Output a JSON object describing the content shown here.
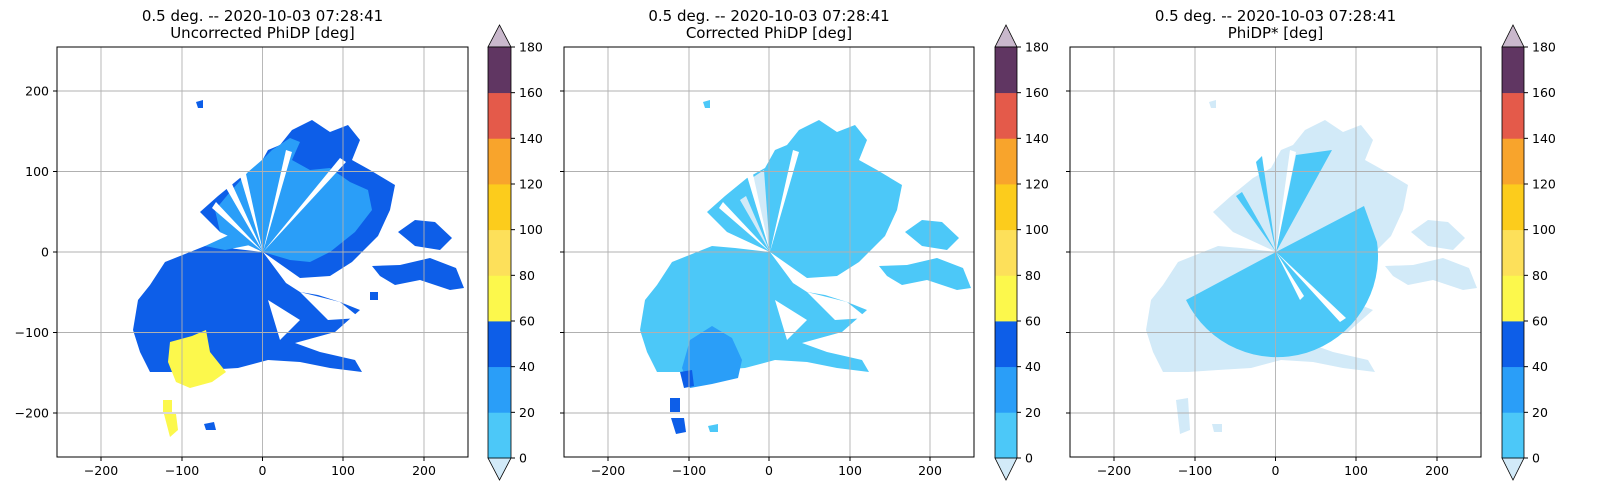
{
  "figure": {
    "background": "#ffffff"
  },
  "chart_data": [
    {
      "type": "heatmap",
      "title": "0.5 deg. -- 2020-10-03 07:28:41",
      "subtitle": "Uncorrected PhiDP [deg]",
      "xlim": [
        -256,
        256
      ],
      "ylim": [
        -256,
        256
      ],
      "xticks": [
        "−200",
        "−100",
        "0",
        "100",
        "200"
      ],
      "yticks": [
        "200",
        "100",
        "0",
        "−100",
        "−200"
      ],
      "grid": true,
      "colorbar": {
        "levels": [
          0,
          20,
          40,
          60,
          80,
          100,
          120,
          140,
          160,
          180
        ],
        "tick_labels": [
          "0",
          "20",
          "40",
          "60",
          "80",
          "100",
          "120",
          "140",
          "160",
          "180"
        ],
        "colors": [
          "#4cc8f8",
          "#2a9ef8",
          "#0d5ee8",
          "#fcf84c",
          "#fde05a",
          "#fccc1c",
          "#f8a42c",
          "#e45a4a",
          "#603662"
        ],
        "under": "#d2eaf8",
        "over": "#c9b8cc"
      },
      "regions": [
        {
          "level_range": [
            40,
            60
          ],
          "color": "#0d5ee8",
          "note": "dominant echo area"
        },
        {
          "level_range": [
            20,
            40
          ],
          "color": "#2a9ef8",
          "note": "northern sector"
        },
        {
          "level_range": [
            60,
            80
          ],
          "color": "#fcf84c",
          "note": "southwest patch"
        }
      ]
    },
    {
      "type": "heatmap",
      "title": "0.5 deg. -- 2020-10-03 07:28:41",
      "subtitle": "Corrected PhiDP [deg]",
      "xlim": [
        -256,
        256
      ],
      "ylim": [
        -256,
        256
      ],
      "xticks": [
        "−200",
        "−100",
        "0",
        "100",
        "200"
      ],
      "yticks": [],
      "grid": true,
      "colorbar": {
        "levels": [
          0,
          20,
          40,
          60,
          80,
          100,
          120,
          140,
          160,
          180
        ],
        "tick_labels": [
          "0",
          "20",
          "40",
          "60",
          "80",
          "100",
          "120",
          "140",
          "160",
          "180"
        ],
        "colors": [
          "#4cc8f8",
          "#2a9ef8",
          "#0d5ee8",
          "#fcf84c",
          "#fde05a",
          "#fccc1c",
          "#f8a42c",
          "#e45a4a",
          "#603662"
        ],
        "under": "#d2eaf8",
        "over": "#c9b8cc"
      },
      "regions": [
        {
          "level_range": [
            0,
            20
          ],
          "color": "#4cc8f8",
          "note": "dominant echo area"
        },
        {
          "level_range": [
            20,
            40
          ],
          "color": "#2a9ef8",
          "note": "southwest patch"
        },
        {
          "level_range": [
            40,
            60
          ],
          "color": "#0d5ee8",
          "note": "small southwest specks"
        }
      ]
    },
    {
      "type": "heatmap",
      "title": "0.5 deg. -- 2020-10-03 07:28:41",
      "subtitle": "PhiDP* [deg]",
      "xlim": [
        -256,
        256
      ],
      "ylim": [
        -256,
        256
      ],
      "xticks": [
        "−200",
        "−100",
        "0",
        "100",
        "200"
      ],
      "yticks": [],
      "grid": true,
      "colorbar": {
        "levels": [
          0,
          20,
          40,
          60,
          80,
          100,
          120,
          140,
          160,
          180
        ],
        "tick_labels": [
          "0",
          "20",
          "40",
          "60",
          "80",
          "100",
          "120",
          "140",
          "160",
          "180"
        ],
        "colors": [
          "#4cc8f8",
          "#2a9ef8",
          "#0d5ee8",
          "#fcf84c",
          "#fde05a",
          "#fccc1c",
          "#f8a42c",
          "#e45a4a",
          "#603662"
        ],
        "under": "#d2eaf8",
        "over": "#c9b8cc"
      },
      "regions": [
        {
          "level_range": [
            "below",
            0
          ],
          "color": "#d2eaf8",
          "note": "outer echo area"
        },
        {
          "level_range": [
            0,
            20
          ],
          "color": "#4cc8f8",
          "note": "sector within ~125 km range"
        }
      ]
    }
  ]
}
